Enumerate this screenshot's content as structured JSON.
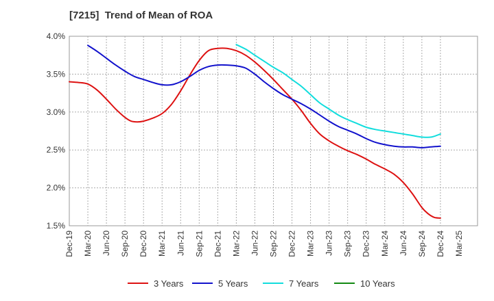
{
  "chart_data": {
    "type": "line",
    "title": "[7215]  Trend of Mean of ROA",
    "xlabel": "",
    "ylabel": "",
    "ylim": [
      1.5,
      4.0
    ],
    "yticks": [
      1.5,
      2.0,
      2.5,
      3.0,
      3.5,
      4.0
    ],
    "ytick_labels": [
      "1.5%",
      "2.0%",
      "2.5%",
      "3.0%",
      "3.5%",
      "4.0%"
    ],
    "x_range": [
      0,
      22
    ],
    "xtick_labels": [
      "Dec-19",
      "Mar-20",
      "Jun-20",
      "Sep-20",
      "Dec-20",
      "Mar-21",
      "Jun-21",
      "Sep-21",
      "Dec-21",
      "Mar-22",
      "Jun-22",
      "Sep-22",
      "Dec-22",
      "Mar-23",
      "Jun-23",
      "Sep-23",
      "Dec-23",
      "Mar-24",
      "Jun-24",
      "Sep-24",
      "Dec-24",
      "Mar-25"
    ],
    "grid": true,
    "legend_position": "bottom",
    "series": [
      {
        "name": "3 Years",
        "color": "#dd1111",
        "x": [
          0,
          0.5,
          1,
          1.5,
          2,
          2.5,
          3,
          3.33,
          3.67,
          4,
          4.5,
          5,
          5.5,
          6,
          6.5,
          7,
          7.5,
          8,
          8.5,
          9,
          9.5,
          10,
          10.5,
          11,
          11.5,
          12,
          12.5,
          13,
          13.5,
          14,
          14.5,
          15,
          15.5,
          16,
          16.5,
          17,
          17.5,
          18,
          18.5,
          19,
          19.33,
          19.67,
          20
        ],
        "values": [
          3.4,
          3.39,
          3.37,
          3.29,
          3.17,
          3.04,
          2.93,
          2.88,
          2.87,
          2.88,
          2.92,
          2.98,
          3.1,
          3.28,
          3.49,
          3.68,
          3.81,
          3.84,
          3.84,
          3.81,
          3.75,
          3.66,
          3.55,
          3.43,
          3.3,
          3.17,
          3.02,
          2.85,
          2.71,
          2.62,
          2.55,
          2.49,
          2.44,
          2.38,
          2.31,
          2.25,
          2.18,
          2.07,
          1.92,
          1.74,
          1.66,
          1.61,
          1.6
        ]
      },
      {
        "name": "5 Years",
        "color": "#1111cc",
        "x": [
          1,
          1.5,
          2,
          2.5,
          3,
          3.5,
          4,
          4.5,
          5,
          5.5,
          6,
          6.5,
          7,
          7.5,
          8,
          8.5,
          9,
          9.5,
          10,
          10.5,
          11,
          11.5,
          12,
          12.5,
          13,
          13.5,
          14,
          14.5,
          15,
          15.5,
          16,
          16.5,
          17,
          17.5,
          18,
          18.5,
          19,
          19.5,
          20
        ],
        "values": [
          3.88,
          3.8,
          3.71,
          3.62,
          3.54,
          3.47,
          3.43,
          3.39,
          3.36,
          3.36,
          3.4,
          3.47,
          3.55,
          3.6,
          3.62,
          3.62,
          3.61,
          3.58,
          3.5,
          3.4,
          3.31,
          3.23,
          3.17,
          3.11,
          3.04,
          2.96,
          2.88,
          2.81,
          2.76,
          2.71,
          2.65,
          2.6,
          2.57,
          2.55,
          2.54,
          2.54,
          2.53,
          2.54,
          2.55
        ]
      },
      {
        "name": "7 Years",
        "color": "#11dddd",
        "x": [
          9,
          9.5,
          10,
          10.5,
          11,
          11.5,
          12,
          12.5,
          13,
          13.5,
          14,
          14.5,
          15,
          15.5,
          16,
          16.5,
          17,
          17.5,
          18,
          18.5,
          19,
          19.5,
          20
        ],
        "values": [
          3.89,
          3.83,
          3.75,
          3.67,
          3.59,
          3.52,
          3.43,
          3.34,
          3.23,
          3.12,
          3.04,
          2.96,
          2.9,
          2.85,
          2.8,
          2.77,
          2.75,
          2.73,
          2.71,
          2.69,
          2.67,
          2.67,
          2.71
        ]
      },
      {
        "name": "10 Years",
        "color": "#118811",
        "x": [],
        "values": []
      }
    ]
  }
}
